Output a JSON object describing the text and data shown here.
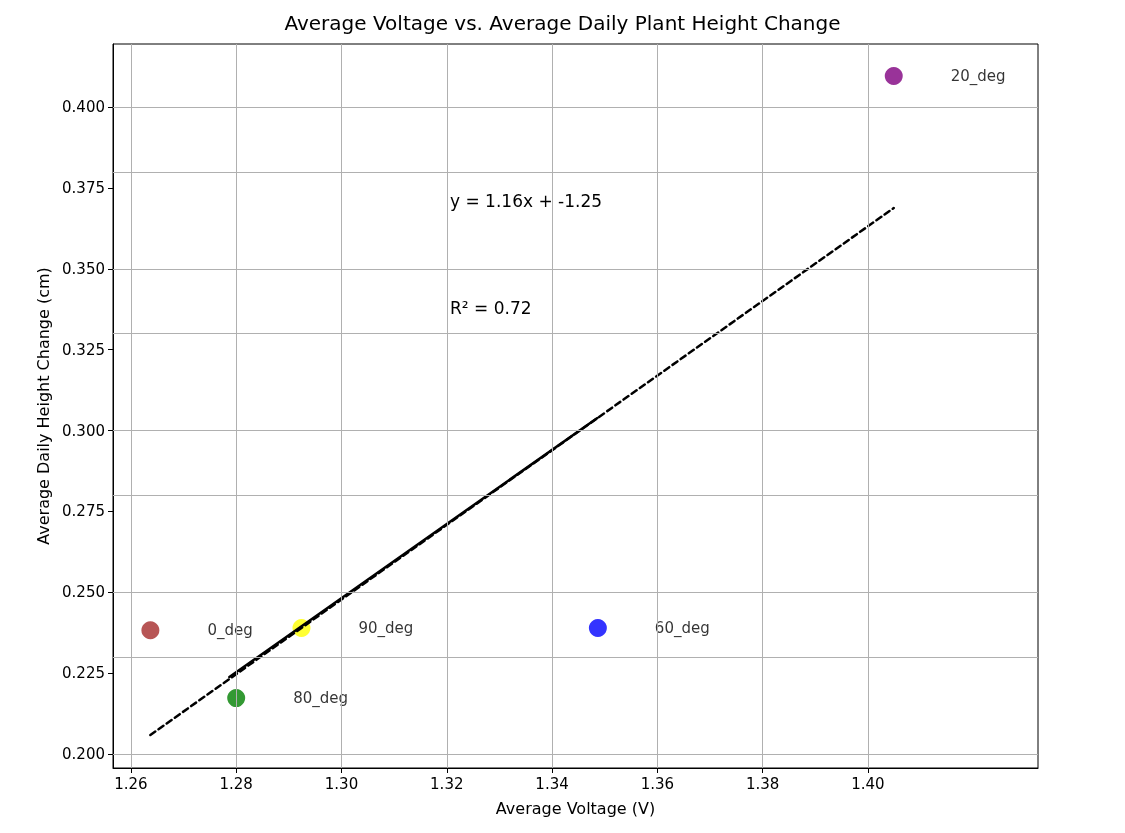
{
  "chart_data": {
    "type": "scatter",
    "title": "Average Voltage vs. Average Daily Plant Height Change",
    "xlabel": "Average Voltage (V)",
    "ylabel": "Average Daily Height Change (cm)",
    "annotations": [
      "y = 1.16x + -1.25",
      "R² = 0.72"
    ],
    "series": [
      {
        "name": "0_deg",
        "color": "#a52a2a",
        "x": [
          1.2637
        ],
        "values": [
          0.2383
        ]
      },
      {
        "name": "80_deg",
        "color": "#008000",
        "x": [
          1.28
        ],
        "values": [
          0.2173
        ]
      },
      {
        "name": "90_deg",
        "color": "#ffff00",
        "x": [
          1.2924
        ],
        "values": [
          0.239
        ]
      },
      {
        "name": "60_deg",
        "color": "#0000ff",
        "x": [
          1.3487
        ],
        "values": [
          0.239
        ]
      },
      {
        "name": "20_deg",
        "color": "#800080",
        "x": [
          1.4049
        ],
        "values": [
          0.4096
        ]
      },
      {
        "type": "line",
        "color": "#000000",
        "line_style": "dashed",
        "marker": "none",
        "x": [
          1.2637,
          1.4049
        ],
        "values": [
          0.2059,
          0.3688
        ]
      },
      {
        "type": "line",
        "color": "#000000",
        "line_style": "solid",
        "marker": "none",
        "x": [
          1.2787,
          1.3486
        ],
        "values": [
          0.2238,
          0.3039
        ]
      }
    ],
    "marker": "circle",
    "grid": true,
    "legend": false,
    "xlim": [
      1.2566,
      1.4323
    ],
    "ylim": [
      0.1957,
      0.4195
    ],
    "xticks": [
      {
        "value": 1.26,
        "label": "1.26"
      },
      {
        "value": 1.28,
        "label": "1.28"
      },
      {
        "value": 1.3,
        "label": "1.30"
      },
      {
        "value": 1.32,
        "label": "1.32"
      },
      {
        "value": 1.34,
        "label": "1.34"
      },
      {
        "value": 1.36,
        "label": "1.36"
      },
      {
        "value": 1.38,
        "label": "1.38"
      },
      {
        "value": 1.4,
        "label": "1.40"
      }
    ],
    "yticks": [
      {
        "value": 0.2,
        "label": "0.200"
      },
      {
        "value": 0.225,
        "label": "0.225"
      },
      {
        "value": 0.25,
        "label": "0.250"
      },
      {
        "value": 0.275,
        "label": "0.275"
      },
      {
        "value": 0.3,
        "label": "0.300"
      },
      {
        "value": 0.325,
        "label": "0.325"
      },
      {
        "value": 0.35,
        "label": "0.350"
      },
      {
        "value": 0.375,
        "label": "0.375"
      },
      {
        "value": 0.4,
        "label": "0.400"
      }
    ]
  }
}
